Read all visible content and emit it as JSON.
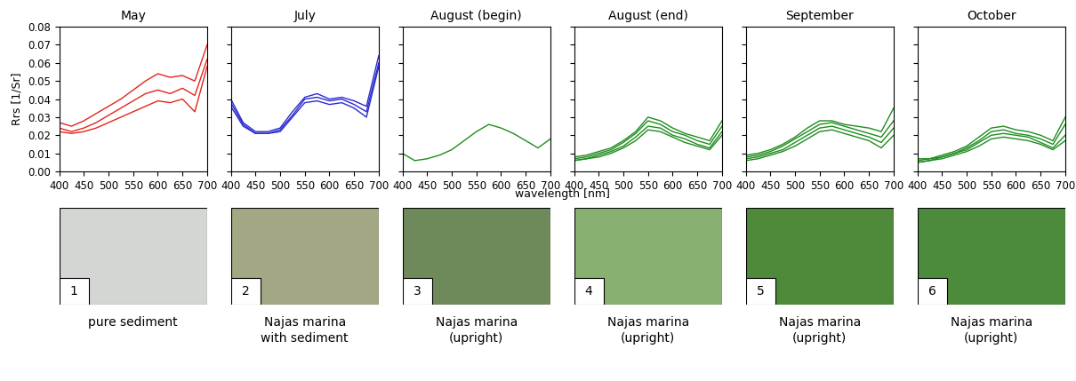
{
  "chart_data": [
    {
      "type": "line",
      "title": "May",
      "ylabel": "Rrs [1/Sr]",
      "x": [
        400,
        425,
        450,
        475,
        500,
        525,
        550,
        575,
        600,
        625,
        650,
        675,
        700
      ],
      "xlim": [
        400,
        700
      ],
      "xticks": [
        400,
        450,
        500,
        550,
        600,
        650,
        700
      ],
      "ylim": [
        0,
        0.08
      ],
      "yticks": [
        {
          "value": 0,
          "label": "0.00"
        },
        {
          "value": 0.01,
          "label": "0.01"
        },
        {
          "value": 0.02,
          "label": "0.02"
        },
        {
          "value": 0.03,
          "label": "0.03"
        },
        {
          "value": 0.04,
          "label": "0.04"
        },
        {
          "value": 0.05,
          "label": "0.05"
        },
        {
          "value": 0.06,
          "label": "0.06"
        },
        {
          "value": 0.07,
          "label": "0.07"
        },
        {
          "value": 0.08,
          "label": "0.08"
        }
      ],
      "series": [
        {
          "color": "#e3241b",
          "values": [
            0.027,
            0.025,
            0.028,
            0.032,
            0.036,
            0.04,
            0.045,
            0.05,
            0.054,
            0.052,
            0.053,
            0.05,
            0.07
          ]
        },
        {
          "color": "#e3241b",
          "values": [
            0.024,
            0.022,
            0.024,
            0.027,
            0.031,
            0.035,
            0.039,
            0.043,
            0.045,
            0.043,
            0.046,
            0.042,
            0.062
          ]
        },
        {
          "color": "#e3241b",
          "values": [
            0.022,
            0.021,
            0.022,
            0.024,
            0.027,
            0.03,
            0.033,
            0.036,
            0.039,
            0.038,
            0.04,
            0.033,
            0.058
          ]
        }
      ]
    },
    {
      "type": "line",
      "title": "July",
      "tick_labels": "x",
      "x": [
        400,
        425,
        450,
        475,
        500,
        525,
        550,
        575,
        600,
        625,
        650,
        675,
        700
      ],
      "xlim": [
        400,
        700
      ],
      "xticks": [
        400,
        450,
        500,
        550,
        600,
        650,
        700
      ],
      "ylim": [
        0,
        0.08
      ],
      "yticks": [
        0,
        0.01,
        0.02,
        0.03,
        0.04,
        0.05,
        0.06,
        0.07,
        0.08
      ],
      "series": [
        {
          "color": "#2a2ad0",
          "values": [
            0.04,
            0.027,
            0.022,
            0.022,
            0.024,
            0.033,
            0.041,
            0.043,
            0.04,
            0.041,
            0.039,
            0.036,
            0.064
          ]
        },
        {
          "color": "#2a2ad0",
          "values": [
            0.038,
            0.026,
            0.021,
            0.021,
            0.023,
            0.031,
            0.04,
            0.041,
            0.039,
            0.04,
            0.037,
            0.033,
            0.06
          ]
        },
        {
          "color": "#2a2ad0",
          "values": [
            0.036,
            0.025,
            0.021,
            0.021,
            0.022,
            0.03,
            0.038,
            0.039,
            0.037,
            0.038,
            0.035,
            0.03,
            0.058
          ]
        }
      ]
    },
    {
      "type": "line",
      "title": "August (begin)",
      "tick_labels": "x",
      "x": [
        400,
        425,
        450,
        475,
        500,
        525,
        550,
        575,
        600,
        625,
        650,
        675,
        700
      ],
      "xlim": [
        400,
        700
      ],
      "xticks": [
        400,
        450,
        500,
        550,
        600,
        650,
        700
      ],
      "ylim": [
        0,
        0.08
      ],
      "yticks": [
        0,
        0.01,
        0.02,
        0.03,
        0.04,
        0.05,
        0.06,
        0.07,
        0.08
      ],
      "series": [
        {
          "color": "#1e8c1e",
          "values": [
            0.01,
            0.006,
            0.007,
            0.009,
            0.012,
            0.017,
            0.022,
            0.026,
            0.024,
            0.021,
            0.017,
            0.013,
            0.018
          ]
        }
      ]
    },
    {
      "type": "line",
      "title": "August (end)",
      "tick_labels": "x",
      "x": [
        400,
        425,
        450,
        475,
        500,
        525,
        550,
        575,
        600,
        625,
        650,
        675,
        700
      ],
      "xlim": [
        400,
        700
      ],
      "xticks": [
        400,
        450,
        500,
        550,
        600,
        650,
        700
      ],
      "ylim": [
        0,
        0.08
      ],
      "yticks": [
        0,
        0.01,
        0.02,
        0.03,
        0.04,
        0.05,
        0.06,
        0.07,
        0.08
      ],
      "series": [
        {
          "color": "#1e8c1e",
          "values": [
            0.008,
            0.009,
            0.011,
            0.013,
            0.017,
            0.022,
            0.03,
            0.028,
            0.024,
            0.021,
            0.019,
            0.017,
            0.028
          ]
        },
        {
          "color": "#1e8c1e",
          "values": [
            0.007,
            0.008,
            0.01,
            0.012,
            0.016,
            0.021,
            0.028,
            0.026,
            0.022,
            0.02,
            0.017,
            0.015,
            0.025
          ]
        },
        {
          "color": "#1e8c1e",
          "values": [
            0.006,
            0.007,
            0.009,
            0.011,
            0.014,
            0.019,
            0.025,
            0.024,
            0.02,
            0.018,
            0.015,
            0.013,
            0.022
          ]
        },
        {
          "color": "#1e8c1e",
          "values": [
            0.006,
            0.007,
            0.008,
            0.01,
            0.013,
            0.017,
            0.023,
            0.022,
            0.019,
            0.016,
            0.014,
            0.012,
            0.02
          ]
        }
      ]
    },
    {
      "type": "line",
      "title": "September",
      "tick_labels": "x",
      "x": [
        400,
        425,
        450,
        475,
        500,
        525,
        550,
        575,
        600,
        625,
        650,
        675,
        700
      ],
      "xlim": [
        400,
        700
      ],
      "xticks": [
        400,
        450,
        500,
        550,
        600,
        650,
        700
      ],
      "ylim": [
        0,
        0.08
      ],
      "yticks": [
        0,
        0.01,
        0.02,
        0.03,
        0.04,
        0.05,
        0.06,
        0.07,
        0.08
      ],
      "series": [
        {
          "color": "#1e8c1e",
          "values": [
            0.009,
            0.01,
            0.012,
            0.015,
            0.019,
            0.024,
            0.028,
            0.028,
            0.026,
            0.025,
            0.024,
            0.022,
            0.035
          ]
        },
        {
          "color": "#1e8c1e",
          "values": [
            0.008,
            0.009,
            0.011,
            0.014,
            0.018,
            0.022,
            0.026,
            0.027,
            0.025,
            0.023,
            0.021,
            0.019,
            0.028
          ]
        },
        {
          "color": "#1e8c1e",
          "values": [
            0.007,
            0.008,
            0.01,
            0.012,
            0.016,
            0.02,
            0.024,
            0.025,
            0.023,
            0.021,
            0.019,
            0.016,
            0.024
          ]
        },
        {
          "color": "#1e8c1e",
          "values": [
            0.006,
            0.007,
            0.009,
            0.011,
            0.014,
            0.018,
            0.022,
            0.023,
            0.021,
            0.019,
            0.017,
            0.013,
            0.02
          ]
        }
      ]
    },
    {
      "type": "line",
      "title": "October",
      "tick_labels": "x",
      "x": [
        400,
        425,
        450,
        475,
        500,
        525,
        550,
        575,
        600,
        625,
        650,
        675,
        700
      ],
      "xlim": [
        400,
        700
      ],
      "xticks": [
        400,
        450,
        500,
        550,
        600,
        650,
        700
      ],
      "ylim": [
        0,
        0.08
      ],
      "yticks": [
        0,
        0.01,
        0.02,
        0.03,
        0.04,
        0.05,
        0.06,
        0.07,
        0.08
      ],
      "series": [
        {
          "color": "#1e8c1e",
          "values": [
            0.007,
            0.007,
            0.009,
            0.011,
            0.014,
            0.019,
            0.024,
            0.025,
            0.023,
            0.022,
            0.02,
            0.017,
            0.03
          ]
        },
        {
          "color": "#1e8c1e",
          "values": [
            0.006,
            0.007,
            0.008,
            0.01,
            0.013,
            0.017,
            0.022,
            0.023,
            0.021,
            0.02,
            0.018,
            0.015,
            0.026
          ]
        },
        {
          "color": "#1e8c1e",
          "values": [
            0.005,
            0.006,
            0.008,
            0.01,
            0.012,
            0.016,
            0.02,
            0.021,
            0.02,
            0.019,
            0.016,
            0.013,
            0.02
          ]
        },
        {
          "color": "#1e8c1e",
          "values": [
            0.005,
            0.006,
            0.007,
            0.009,
            0.011,
            0.014,
            0.018,
            0.019,
            0.018,
            0.017,
            0.015,
            0.012,
            0.017
          ]
        }
      ]
    }
  ],
  "figure": {
    "xlabel": "wavelength [nm]"
  },
  "photos": [
    {
      "number": "1",
      "caption": "pure sediment"
    },
    {
      "number": "2",
      "caption": "Najas marina\nwith sediment"
    },
    {
      "number": "3",
      "caption": "Najas marina\n(upright)"
    },
    {
      "number": "4",
      "caption": "Najas marina\n(upright)"
    },
    {
      "number": "5",
      "caption": "Najas marina\n(upright)"
    },
    {
      "number": "6",
      "caption": "Najas marina\n(upright)"
    }
  ]
}
